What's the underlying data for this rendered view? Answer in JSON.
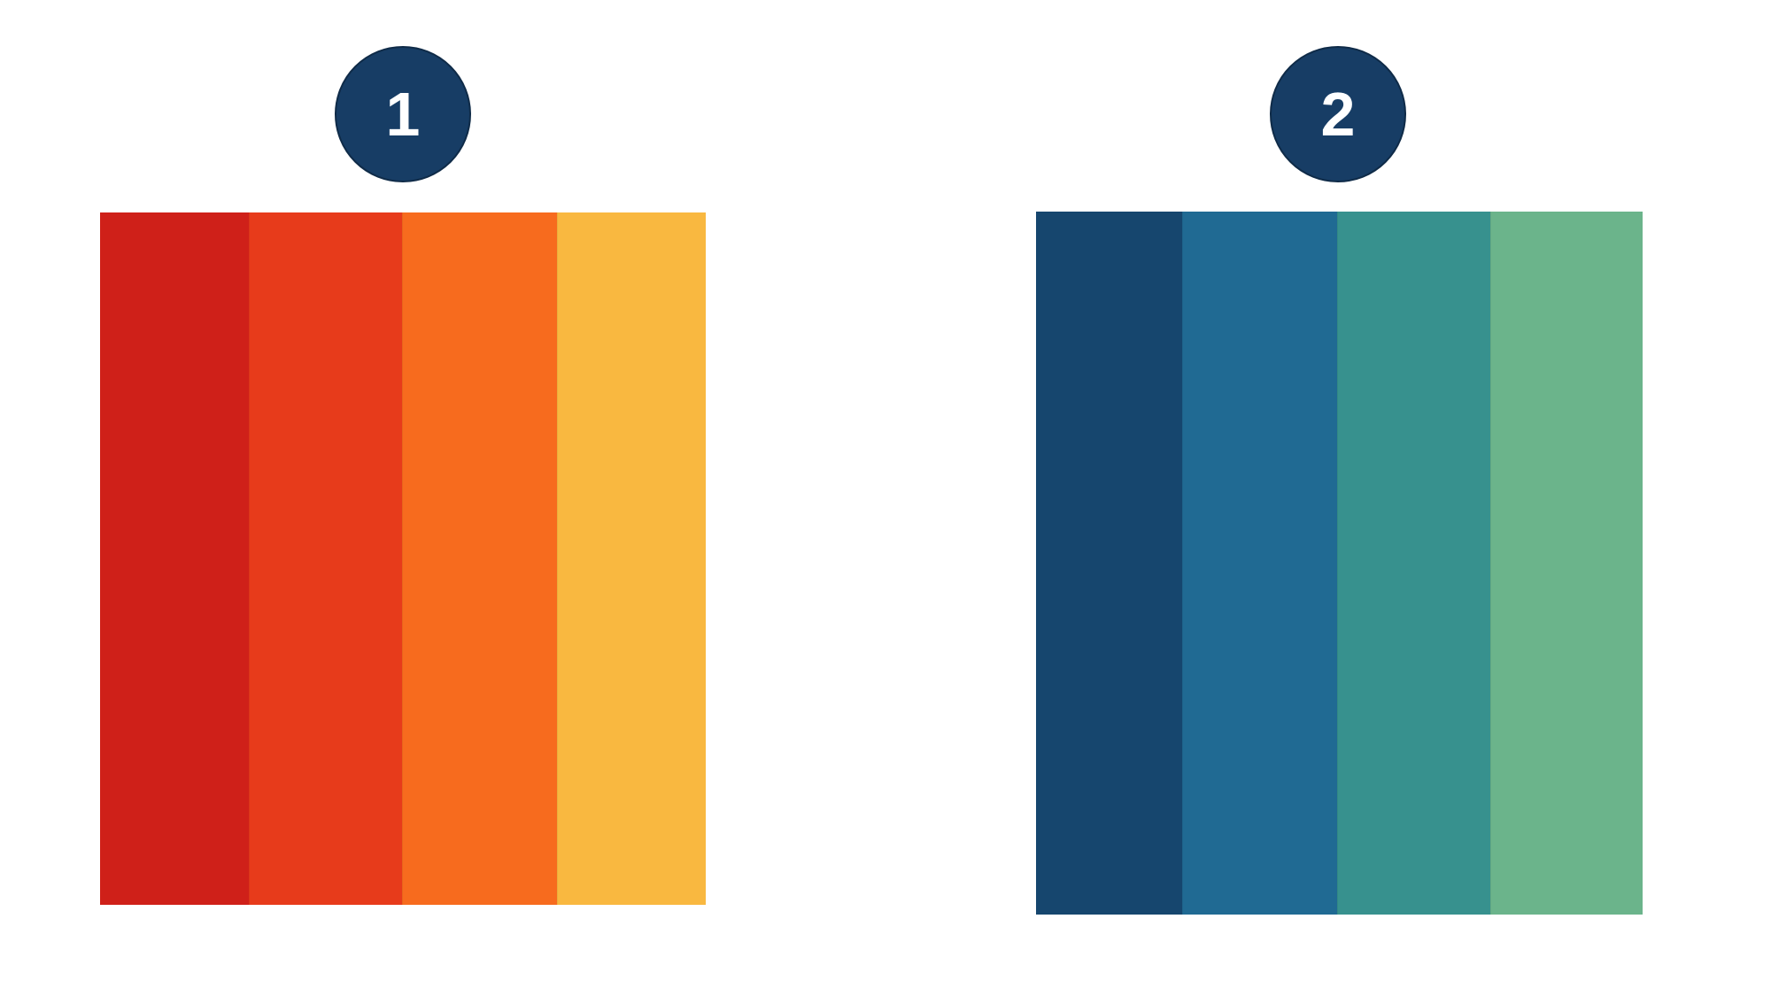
{
  "badges": [
    {
      "label": "1"
    },
    {
      "label": "2"
    }
  ],
  "colors": {
    "badge_bg": "#173d65",
    "badge_text": "#ffffff"
  },
  "palettes": [
    {
      "swatches": [
        "#cf2019",
        "#e73b1b",
        "#f76b1e",
        "#f9b840"
      ]
    },
    {
      "swatches": [
        "#16466e",
        "#206a93",
        "#37918e",
        "#6bb48b"
      ]
    }
  ]
}
